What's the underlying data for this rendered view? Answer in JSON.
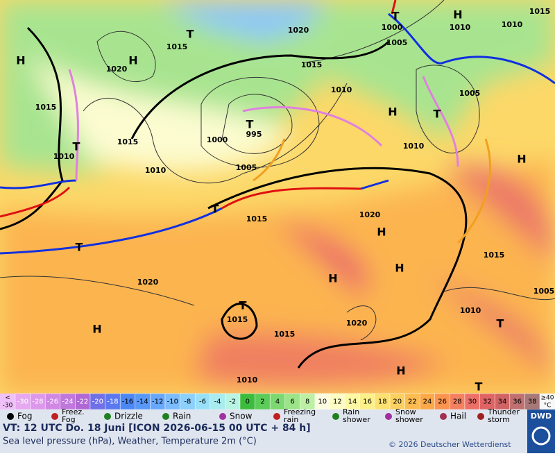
{
  "map_labels": [
    "T",
    "1015",
    "H",
    "1020",
    "H",
    "1015",
    "1020",
    "1015",
    "T",
    "1000",
    "1005",
    "H",
    "1010",
    "1015",
    "1010",
    "1010",
    "T",
    "995",
    "1000",
    "1015",
    "T",
    "1010",
    "1010",
    "1005",
    "1005",
    "T",
    "H",
    "1010",
    "H",
    "T",
    "1015",
    "1020",
    "H",
    "T",
    "H",
    "H",
    "1015",
    "1020",
    "T",
    "1015",
    "1020",
    "1010",
    "T",
    "1005",
    "H",
    "1015",
    "H",
    "1010",
    "T"
  ],
  "scale": {
    "low": [
      "<",
      "-30"
    ],
    "high": [
      "≥40",
      "°C"
    ],
    "steps": [
      {
        "value": -30,
        "color": "#e6a8f0"
      },
      {
        "value": -28,
        "color": "#dc98ea"
      },
      {
        "value": -26,
        "color": "#d088e4"
      },
      {
        "value": -24,
        "color": "#c078dc"
      },
      {
        "value": -22,
        "color": "#b068d4"
      },
      {
        "value": -20,
        "color": "#7070e8"
      },
      {
        "value": -18,
        "color": "#5c78f0"
      },
      {
        "value": -16,
        "color": "#4c88f4"
      },
      {
        "value": -14,
        "color": "#5898f8"
      },
      {
        "value": -12,
        "color": "#68a8fc"
      },
      {
        "value": -10,
        "color": "#7cbcff"
      },
      {
        "value": -8,
        "color": "#8cd0fc"
      },
      {
        "value": -6,
        "color": "#98e0f8"
      },
      {
        "value": -4,
        "color": "#a8ecf0"
      },
      {
        "value": -2,
        "color": "#b8f4e4"
      },
      {
        "value": 0,
        "color": "#3cbc3c"
      },
      {
        "value": 2,
        "color": "#5ccc58"
      },
      {
        "value": 4,
        "color": "#7cd870"
      },
      {
        "value": 6,
        "color": "#9ce488"
      },
      {
        "value": 8,
        "color": "#bcf0a4"
      },
      {
        "value": 10,
        "color": "#fcfce0"
      },
      {
        "value": 12,
        "color": "#fcfcc4"
      },
      {
        "value": 14,
        "color": "#fcf8a4"
      },
      {
        "value": 16,
        "color": "#fcf088"
      },
      {
        "value": 18,
        "color": "#fce070"
      },
      {
        "value": 20,
        "color": "#fcd060"
      },
      {
        "value": 22,
        "color": "#fcbc50"
      },
      {
        "value": 24,
        "color": "#fca848"
      },
      {
        "value": 26,
        "color": "#fc9450"
      },
      {
        "value": 28,
        "color": "#f48060"
      },
      {
        "value": 30,
        "color": "#ec7068"
      },
      {
        "value": 32,
        "color": "#e06464"
      },
      {
        "value": 34,
        "color": "#d06464"
      },
      {
        "value": 36,
        "color": "#c07070"
      },
      {
        "value": 38,
        "color": "#a87878"
      }
    ]
  },
  "legend": [
    {
      "lines": [
        "Fog"
      ]
    },
    {
      "lines": [
        "Freez.",
        "Fog"
      ]
    },
    {
      "lines": [
        "Drizzle"
      ]
    },
    {
      "lines": [
        "Rain"
      ]
    },
    {
      "lines": [
        "Snow"
      ]
    },
    {
      "lines": [
        "Freezing",
        "rain"
      ]
    },
    {
      "lines": [
        "Rain",
        "shower"
      ]
    },
    {
      "lines": [
        "Snow",
        "shower"
      ]
    },
    {
      "lines": [
        "Hail"
      ]
    },
    {
      "lines": [
        "Thunder",
        "storm"
      ]
    }
  ],
  "footer": {
    "valid": "VT: 12 UTC Do.  18 Juni [ICON 2026-06-15  00 UTC + 84 h]",
    "subtitle": "Sea level pressure (hPa), Weather, Temperature 2m (°C)",
    "copyright": "© 2026 Deutscher Wetterdienst",
    "logo": "DWD"
  }
}
